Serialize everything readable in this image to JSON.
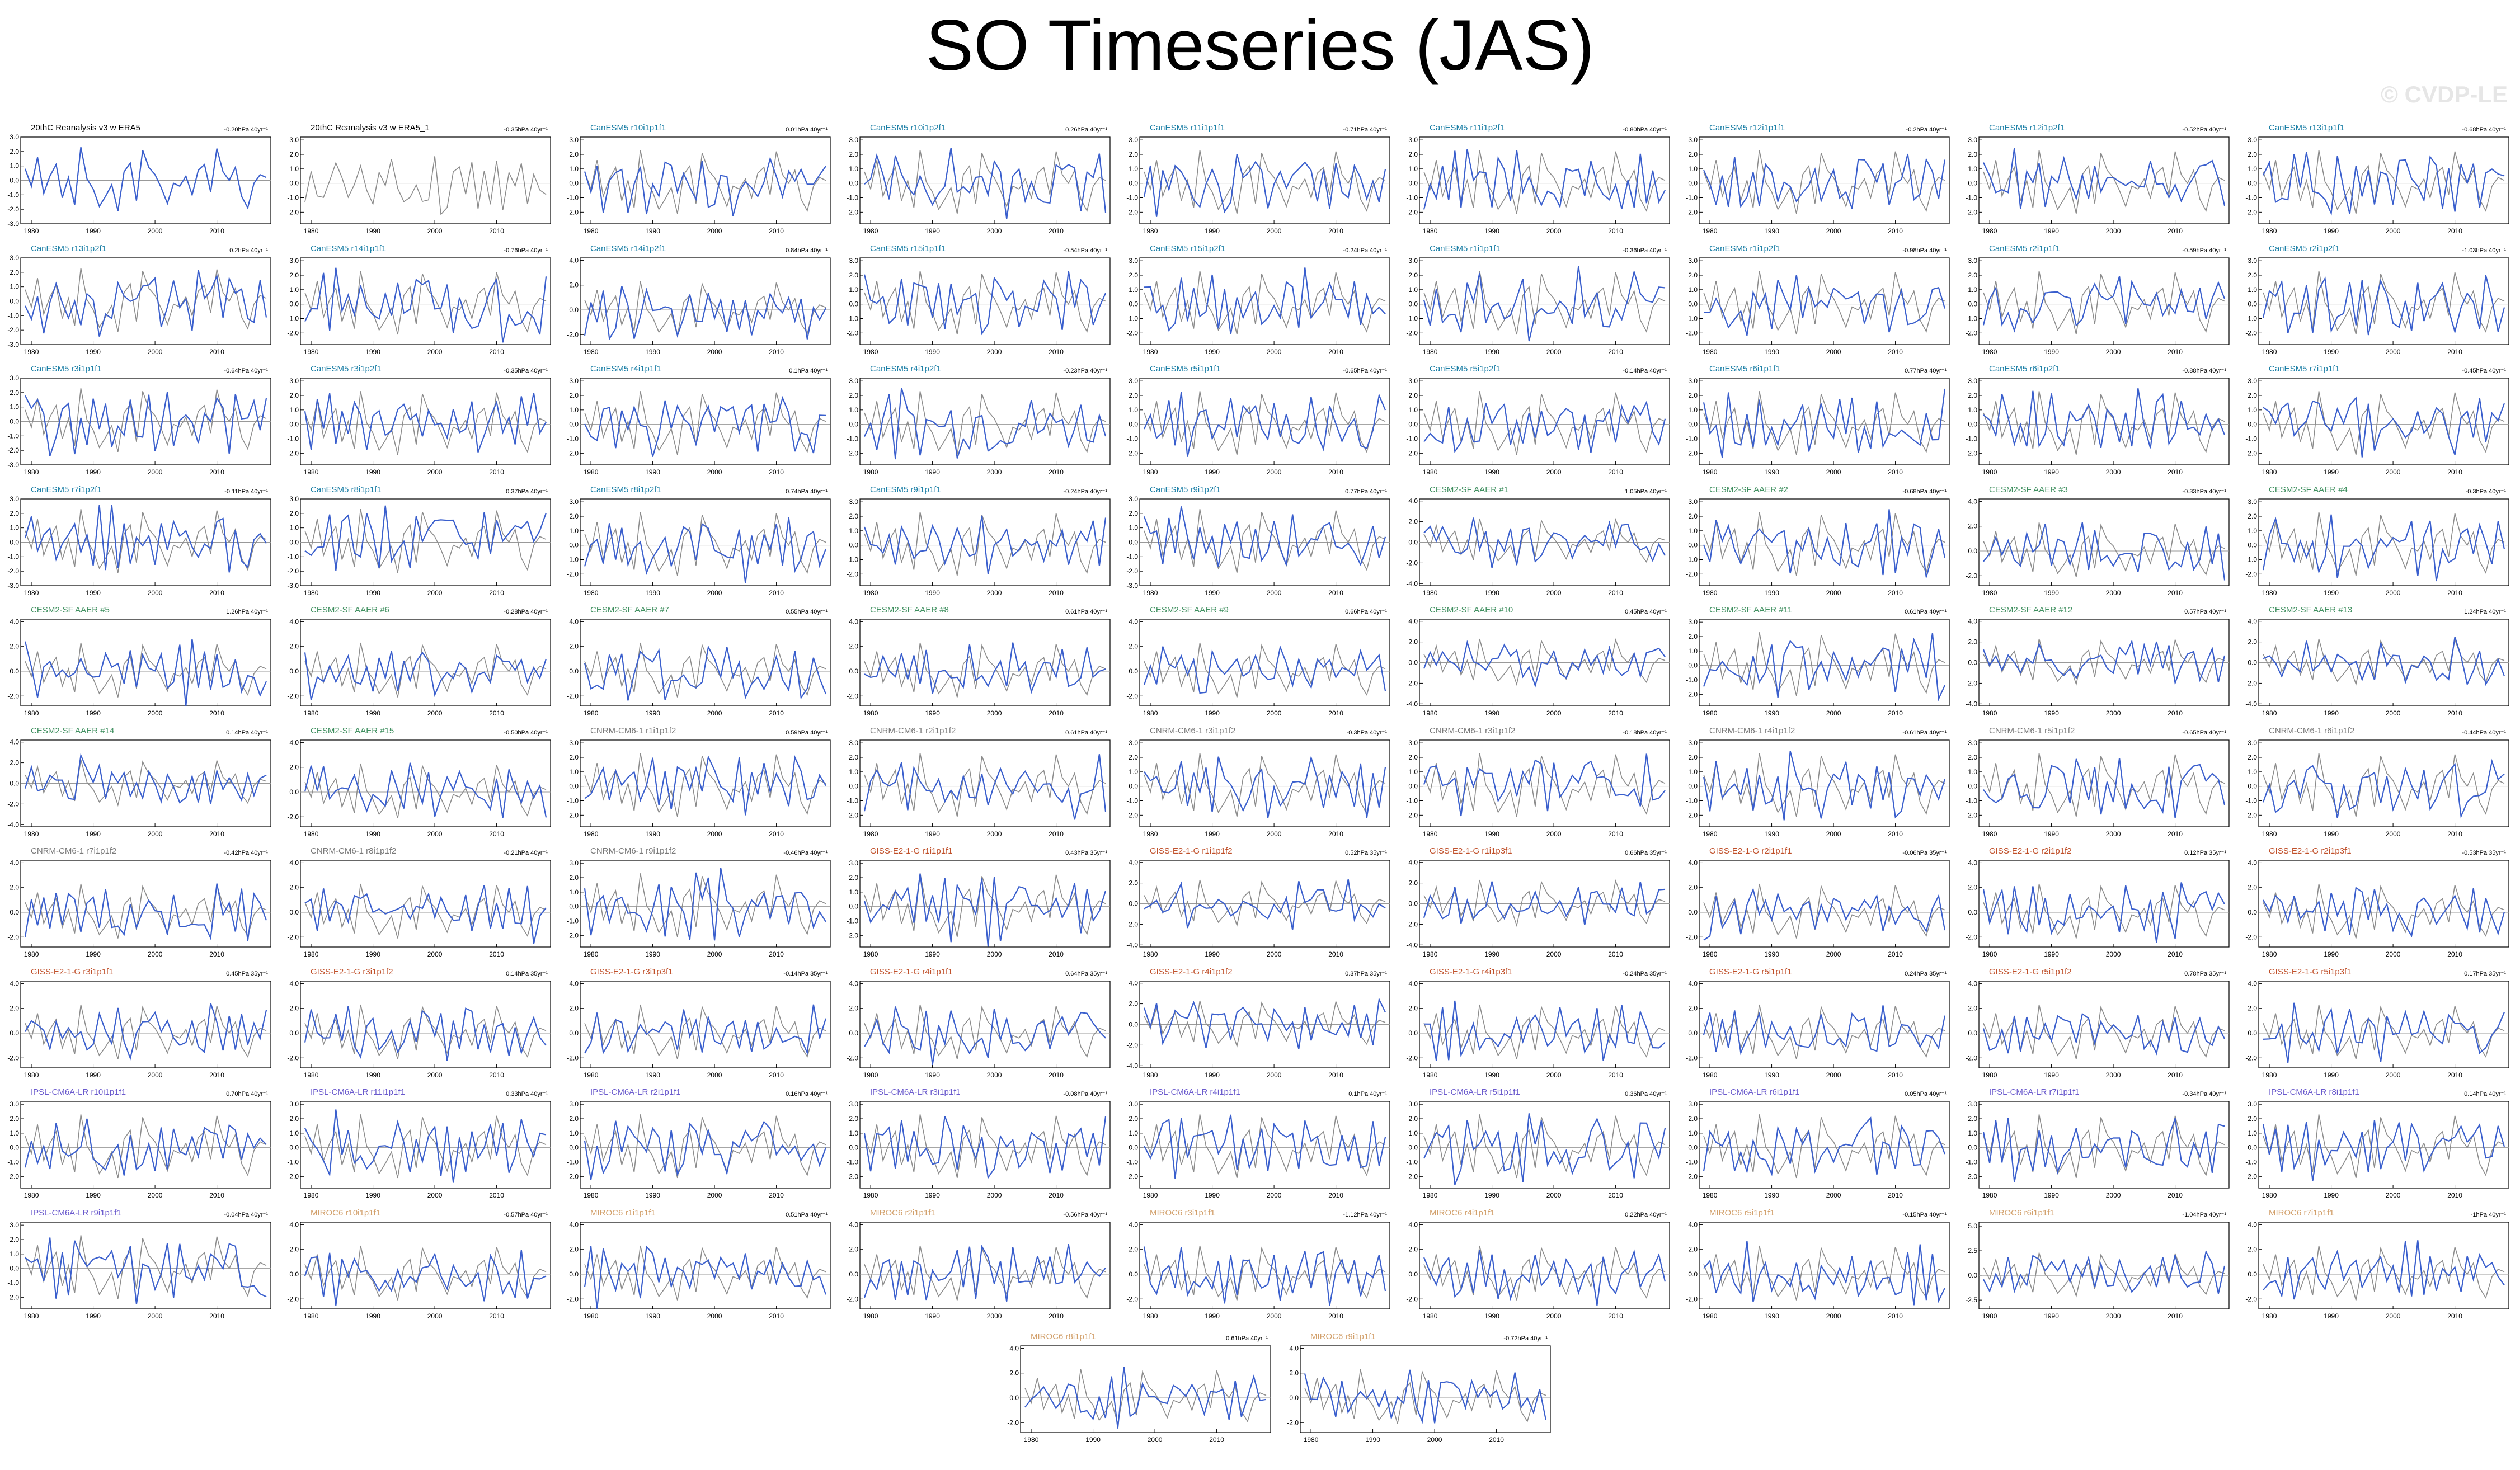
{
  "title": "SO Timeseries (JAS)",
  "watermark": "© CVDP-LE",
  "colors": {
    "model_line": "#3a5fcd",
    "obs_line": "#8c8c8c",
    "zero_line": "#999999",
    "label_obs": "#000000",
    "label_canesm": "#1c7fa6",
    "label_cesm": "#3f8f5f",
    "label_cnrm": "#7a7a7a",
    "label_giss": "#c0502a",
    "label_ipsl": "#6a5acd",
    "label_miroc": "#d2a06b"
  },
  "x_ticks": [
    "1980",
    "1990",
    "2000",
    "2010"
  ],
  "y_ticks": {
    "A": [
      "3.0",
      "2.0",
      "1.0",
      "0.0",
      "-1.0",
      "-2.0",
      "-3.0"
    ],
    "B": [
      "4.0",
      "2.0",
      "0.0",
      "-2.0"
    ],
    "C": [
      "3.0",
      "2.0",
      "1.0",
      "0.0",
      "-1.0",
      "-2.0"
    ],
    "D": [
      "4.0",
      "2.0",
      "0.0",
      "-2.0",
      "-4.0"
    ],
    "E": [
      "5.0",
      "2.5",
      "0.0",
      "-2.5"
    ]
  },
  "panels": [
    {
      "label": "20thC Reanalysis v3 w ERA5",
      "trend": "-0.20hPa 40yr⁻¹",
      "group": "obs",
      "scale": "A",
      "obs_only": true
    },
    {
      "label": "20thC Reanalysis v3 w ERA5_1",
      "trend": "-0.35hPa 40yr⁻¹",
      "group": "obs",
      "scale": "C",
      "gray_only": true
    },
    {
      "label": "CanESM5 r10i1p1f1",
      "trend": "0.01hPa 40yr⁻¹",
      "group": "canesm",
      "scale": "C"
    },
    {
      "label": "CanESM5 r10i1p2f1",
      "trend": "0.26hPa 40yr⁻¹",
      "group": "canesm",
      "scale": "C"
    },
    {
      "label": "CanESM5 r11i1p1f1",
      "trend": "-0.71hPa 40yr⁻¹",
      "group": "canesm",
      "scale": "C"
    },
    {
      "label": "CanESM5 r11i1p2f1",
      "trend": "-0.80hPa 40yr⁻¹",
      "group": "canesm",
      "scale": "C"
    },
    {
      "label": "CanESM5 r12i1p1f1",
      "trend": "-0.2hPa 40yr⁻¹",
      "group": "canesm",
      "scale": "C"
    },
    {
      "label": "CanESM5 r12i1p2f1",
      "trend": "-0.52hPa 40yr⁻¹",
      "group": "canesm",
      "scale": "C"
    },
    {
      "label": "CanESM5 r13i1p1f1",
      "trend": "-0.68hPa 40yr⁻¹",
      "group": "canesm",
      "scale": "C"
    },
    {
      "label": "CanESM5 r13i1p2f1",
      "trend": "0.2hPa 40yr⁻¹",
      "group": "canesm",
      "scale": "A"
    },
    {
      "label": "CanESM5 r14i1p1f1",
      "trend": "-0.76hPa 40yr⁻¹",
      "group": "canesm",
      "scale": "C"
    },
    {
      "label": "CanESM5 r14i1p2f1",
      "trend": "0.84hPa 40yr⁻¹",
      "group": "canesm",
      "scale": "B"
    },
    {
      "label": "CanESM5 r15i1p1f1",
      "trend": "-0.54hPa 40yr⁻¹",
      "group": "canesm",
      "scale": "C"
    },
    {
      "label": "CanESM5 r15i1p2f1",
      "trend": "-0.24hPa 40yr⁻¹",
      "group": "canesm",
      "scale": "C"
    },
    {
      "label": "CanESM5 r1i1p1f1",
      "trend": "-0.36hPa 40yr⁻¹",
      "group": "canesm",
      "scale": "C"
    },
    {
      "label": "CanESM5 r1i1p2f1",
      "trend": "-0.98hPa 40yr⁻¹",
      "group": "canesm",
      "scale": "C"
    },
    {
      "label": "CanESM5 r2i1p1f1",
      "trend": "-0.59hPa 40yr⁻¹",
      "group": "canesm",
      "scale": "C"
    },
    {
      "label": "CanESM5 r2i1p2f1",
      "trend": "-1.03hPa 40yr⁻¹",
      "group": "canesm",
      "scale": "C"
    },
    {
      "label": "CanESM5 r3i1p1f1",
      "trend": "-0.64hPa 40yr⁻¹",
      "group": "canesm",
      "scale": "A"
    },
    {
      "label": "CanESM5 r3i1p2f1",
      "trend": "-0.35hPa 40yr⁻¹",
      "group": "canesm",
      "scale": "C"
    },
    {
      "label": "CanESM5 r4i1p1f1",
      "trend": "0.1hPa 40yr⁻¹",
      "group": "canesm",
      "scale": "C"
    },
    {
      "label": "CanESM5 r4i1p2f1",
      "trend": "-0.23hPa 40yr⁻¹",
      "group": "canesm",
      "scale": "C"
    },
    {
      "label": "CanESM5 r5i1p1f1",
      "trend": "-0.65hPa 40yr⁻¹",
      "group": "canesm",
      "scale": "C"
    },
    {
      "label": "CanESM5 r5i1p2f1",
      "trend": "-0.14hPa 40yr⁻¹",
      "group": "canesm",
      "scale": "C"
    },
    {
      "label": "CanESM5 r6i1p1f1",
      "trend": "0.77hPa 40yr⁻¹",
      "group": "canesm",
      "scale": "C"
    },
    {
      "label": "CanESM5 r6i1p2f1",
      "trend": "-0.88hPa 40yr⁻¹",
      "group": "canesm",
      "scale": "C"
    },
    {
      "label": "CanESM5 r7i1p1f1",
      "trend": "-0.45hPa 40yr⁻¹",
      "group": "canesm",
      "scale": "C"
    },
    {
      "label": "CanESM5 r7i1p2f1",
      "trend": "-0.11hPa 40yr⁻¹",
      "group": "canesm",
      "scale": "A"
    },
    {
      "label": "CanESM5 r8i1p1f1",
      "trend": "0.37hPa 40yr⁻¹",
      "group": "canesm",
      "scale": "A"
    },
    {
      "label": "CanESM5 r8i1p2f1",
      "trend": "0.74hPa 40yr⁻¹",
      "group": "canesm",
      "scale": "C"
    },
    {
      "label": "CanESM5 r9i1p1f1",
      "trend": "-0.24hPa 40yr⁻¹",
      "group": "canesm",
      "scale": "C"
    },
    {
      "label": "CanESM5 r9i1p2f1",
      "trend": "0.77hPa 40yr⁻¹",
      "group": "canesm",
      "scale": "A"
    },
    {
      "label": "CESM2-SF AAER #1",
      "trend": "1.05hPa 40yr⁻¹",
      "group": "cesm",
      "scale": "D"
    },
    {
      "label": "CESM2-SF AAER #2",
      "trend": "-0.68hPa 40yr⁻¹",
      "group": "cesm",
      "scale": "C"
    },
    {
      "label": "CESM2-SF AAER #3",
      "trend": "-0.33hPa 40yr⁻¹",
      "group": "cesm",
      "scale": "B"
    },
    {
      "label": "CESM2-SF AAER #4",
      "trend": "-0.3hPa 40yr⁻¹",
      "group": "cesm",
      "scale": "C"
    },
    {
      "label": "CESM2-SF AAER #5",
      "trend": "1.26hPa 40yr⁻¹",
      "group": "cesm",
      "scale": "B"
    },
    {
      "label": "CESM2-SF AAER #6",
      "trend": "-0.28hPa 40yr⁻¹",
      "group": "cesm",
      "scale": "B"
    },
    {
      "label": "CESM2-SF AAER #7",
      "trend": "0.55hPa 40yr⁻¹",
      "group": "cesm",
      "scale": "B"
    },
    {
      "label": "CESM2-SF AAER #8",
      "trend": "0.61hPa 40yr⁻¹",
      "group": "cesm",
      "scale": "B"
    },
    {
      "label": "CESM2-SF AAER #9",
      "trend": "0.66hPa 40yr⁻¹",
      "group": "cesm",
      "scale": "B"
    },
    {
      "label": "CESM2-SF AAER #10",
      "trend": "0.45hPa 40yr⁻¹",
      "group": "cesm",
      "scale": "D"
    },
    {
      "label": "CESM2-SF AAER #11",
      "trend": "0.61hPa 40yr⁻¹",
      "group": "cesm",
      "scale": "C"
    },
    {
      "label": "CESM2-SF AAER #12",
      "trend": "0.57hPa 40yr⁻¹",
      "group": "cesm",
      "scale": "D"
    },
    {
      "label": "CESM2-SF AAER #13",
      "trend": "1.24hPa 40yr⁻¹",
      "group": "cesm",
      "scale": "D"
    },
    {
      "label": "CESM2-SF AAER #14",
      "trend": "0.14hPa 40yr⁻¹",
      "group": "cesm",
      "scale": "D"
    },
    {
      "label": "CESM2-SF AAER #15",
      "trend": "-0.50hPa 40yr⁻¹",
      "group": "cesm",
      "scale": "B"
    },
    {
      "label": "CNRM-CM6-1 r1i1p1f2",
      "trend": "0.59hPa 40yr⁻¹",
      "group": "cnrm",
      "scale": "C"
    },
    {
      "label": "CNRM-CM6-1 r2i1p1f2",
      "trend": "0.61hPa 40yr⁻¹",
      "group": "cnrm",
      "scale": "C"
    },
    {
      "label": "CNRM-CM6-1 r3i1p1f2",
      "trend": "-0.3hPa 40yr⁻¹",
      "group": "cnrm",
      "scale": "C"
    },
    {
      "label": "CNRM-CM6-1 r3i1p1f2",
      "trend": "-0.18hPa 40yr⁻¹",
      "group": "cnrm",
      "scale": "C"
    },
    {
      "label": "CNRM-CM6-1 r4i1p1f2",
      "trend": "-0.61hPa 40yr⁻¹",
      "group": "cnrm",
      "scale": "C"
    },
    {
      "label": "CNRM-CM6-1 r5i1p1f2",
      "trend": "-0.65hPa 40yr⁻¹",
      "group": "cnrm",
      "scale": "C"
    },
    {
      "label": "CNRM-CM6-1 r6i1p1f2",
      "trend": "-0.44hPa 40yr⁻¹",
      "group": "cnrm",
      "scale": "C"
    },
    {
      "label": "CNRM-CM6-1 r7i1p1f2",
      "trend": "-0.42hPa 40yr⁻¹",
      "group": "cnrm",
      "scale": "B"
    },
    {
      "label": "CNRM-CM6-1 r8i1p1f2",
      "trend": "-0.21hPa 40yr⁻¹",
      "group": "cnrm",
      "scale": "B"
    },
    {
      "label": "CNRM-CM6-1 r9i1p1f2",
      "trend": "-0.46hPa 40yr⁻¹",
      "group": "cnrm",
      "scale": "C"
    },
    {
      "label": "GISS-E2-1-G r1i1p1f1",
      "trend": "0.43hPa 35yr⁻¹",
      "group": "giss",
      "scale": "C"
    },
    {
      "label": "GISS-E2-1-G r1i1p1f2",
      "trend": "0.52hPa 35yr⁻¹",
      "group": "giss",
      "scale": "D"
    },
    {
      "label": "GISS-E2-1-G r1i1p3f1",
      "trend": "0.66hPa 35yr⁻¹",
      "group": "giss",
      "scale": "D"
    },
    {
      "label": "GISS-E2-1-G r2i1p1f1",
      "trend": "-0.06hPa 35yr⁻¹",
      "group": "giss",
      "scale": "B"
    },
    {
      "label": "GISS-E2-1-G r2i1p1f2",
      "trend": "0.12hPa 35yr⁻¹",
      "group": "giss",
      "scale": "B"
    },
    {
      "label": "GISS-E2-1-G r2i1p3f1",
      "trend": "-0.53hPa 35yr⁻¹",
      "group": "giss",
      "scale": "B"
    },
    {
      "label": "GISS-E2-1-G r3i1p1f1",
      "trend": "0.45hPa 35yr⁻¹",
      "group": "giss",
      "scale": "B"
    },
    {
      "label": "GISS-E2-1-G r3i1p1f2",
      "trend": "0.14hPa 35yr⁻¹",
      "group": "giss",
      "scale": "B"
    },
    {
      "label": "GISS-E2-1-G r3i1p3f1",
      "trend": "-0.14hPa 35yr⁻¹",
      "group": "giss",
      "scale": "B"
    },
    {
      "label": "GISS-E2-1-G r4i1p1f1",
      "trend": "0.64hPa 35yr⁻¹",
      "group": "giss",
      "scale": "B"
    },
    {
      "label": "GISS-E2-1-G r4i1p1f2",
      "trend": "0.37hPa 35yr⁻¹",
      "group": "giss",
      "scale": "D"
    },
    {
      "label": "GISS-E2-1-G r4i1p3f1",
      "trend": "-0.24hPa 35yr⁻¹",
      "group": "giss",
      "scale": "B"
    },
    {
      "label": "GISS-E2-1-G r5i1p1f1",
      "trend": "0.24hPa 35yr⁻¹",
      "group": "giss",
      "scale": "B"
    },
    {
      "label": "GISS-E2-1-G r5i1p1f2",
      "trend": "0.78hPa 35yr⁻¹",
      "group": "giss",
      "scale": "B"
    },
    {
      "label": "GISS-E2-1-G r5i1p3f1",
      "trend": "0.17hPa 35yr⁻¹",
      "group": "giss",
      "scale": "B"
    },
    {
      "label": "IPSL-CM6A-LR r10i1p1f1",
      "trend": "0.70hPa 40yr⁻¹",
      "group": "ipsl",
      "scale": "C"
    },
    {
      "label": "IPSL-CM6A-LR r11i1p1f1",
      "trend": "0.33hPa 40yr⁻¹",
      "group": "ipsl",
      "scale": "C"
    },
    {
      "label": "IPSL-CM6A-LR r2i1p1f1",
      "trend": "0.16hPa 40yr⁻¹",
      "group": "ipsl",
      "scale": "C"
    },
    {
      "label": "IPSL-CM6A-LR r3i1p1f1",
      "trend": "-0.08hPa 40yr⁻¹",
      "group": "ipsl",
      "scale": "C"
    },
    {
      "label": "IPSL-CM6A-LR r4i1p1f1",
      "trend": "0.1hPa 40yr⁻¹",
      "group": "ipsl",
      "scale": "C"
    },
    {
      "label": "IPSL-CM6A-LR r5i1p1f1",
      "trend": "0.36hPa 40yr⁻¹",
      "group": "ipsl",
      "scale": "C"
    },
    {
      "label": "IPSL-CM6A-LR r6i1p1f1",
      "trend": "0.05hPa 40yr⁻¹",
      "group": "ipsl",
      "scale": "C"
    },
    {
      "label": "IPSL-CM6A-LR r7i1p1f1",
      "trend": "-0.34hPa 40yr⁻¹",
      "group": "ipsl",
      "scale": "C"
    },
    {
      "label": "IPSL-CM6A-LR r8i1p1f1",
      "trend": "0.14hPa 40yr⁻¹",
      "group": "ipsl",
      "scale": "C"
    },
    {
      "label": "IPSL-CM6A-LR r9i1p1f1",
      "trend": "-0.04hPa 40yr⁻¹",
      "group": "ipsl",
      "scale": "C"
    },
    {
      "label": "MIROC6 r10i1p1f1",
      "trend": "-0.57hPa 40yr⁻¹",
      "group": "miroc",
      "scale": "B"
    },
    {
      "label": "MIROC6 r1i1p1f1",
      "trend": "0.51hPa 40yr⁻¹",
      "group": "miroc",
      "scale": "B"
    },
    {
      "label": "MIROC6 r2i1p1f1",
      "trend": "-0.56hPa 40yr⁻¹",
      "group": "miroc",
      "scale": "B"
    },
    {
      "label": "MIROC6 r3i1p1f1",
      "trend": "-1.12hPa 40yr⁻¹",
      "group": "miroc",
      "scale": "B"
    },
    {
      "label": "MIROC6 r4i1p1f1",
      "trend": "0.22hPa 40yr⁻¹",
      "group": "miroc",
      "scale": "B"
    },
    {
      "label": "MIROC6 r5i1p1f1",
      "trend": "-0.15hPa 40yr⁻¹",
      "group": "miroc",
      "scale": "B"
    },
    {
      "label": "MIROC6 r6i1p1f1",
      "trend": "-1.04hPa 40yr⁻¹",
      "group": "miroc",
      "scale": "E"
    },
    {
      "label": "MIROC6 r7i1p1f1",
      "trend": "-1hPa 40yr⁻¹",
      "group": "miroc",
      "scale": "B"
    },
    {
      "label": "MIROC6 r8i1p1f1",
      "trend": "0.61hPa 40yr⁻¹",
      "group": "miroc",
      "scale": "B"
    },
    {
      "label": "MIROC6 r9i1p1f1",
      "trend": "-0.72hPa 40yr⁻¹",
      "group": "miroc",
      "scale": "B"
    }
  ],
  "chart_data": {
    "type": "line",
    "title": "SO Timeseries (JAS)",
    "xlabel": "",
    "ylabel": "",
    "xlim": [
      1979,
      2018
    ],
    "x_ticks": [
      1980,
      1990,
      2000,
      2010
    ],
    "grid": false,
    "legend": "none",
    "note_series": "Each panel: blue = ensemble member, gray = observed reference; series values estimated from the figure",
    "obs_reference": [
      0.8,
      -0.4,
      1.6,
      -0.9,
      0.3,
      1.1,
      -1.2,
      0.2,
      -1.7,
      2.3,
      0.1,
      -0.6,
      -1.8,
      -1.1,
      -0.3,
      -2.1,
      0.6,
      1.2,
      -1.4,
      2.1,
      0.9,
      0.4,
      -0.5,
      -1.6,
      -0.2,
      -0.4,
      0.3,
      -1.0,
      0.7,
      1.1,
      -0.8,
      2.2,
      0.6,
      0.0,
      0.9,
      -1.1,
      -1.9,
      -0.2,
      0.4,
      0.2
    ]
  }
}
